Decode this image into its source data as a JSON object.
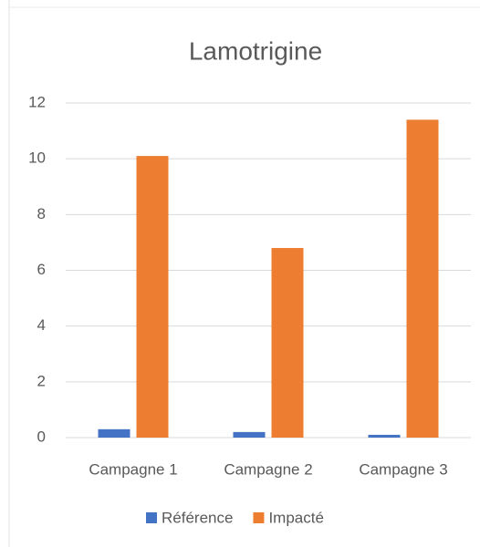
{
  "chart_data": {
    "type": "bar",
    "title": "Lamotrigine",
    "categories": [
      "Campagne 1",
      "Campagne 2",
      "Campagne 3"
    ],
    "series": [
      {
        "name": "Référence",
        "color": "#4472c4",
        "values": [
          0.3,
          0.2,
          0.1
        ]
      },
      {
        "name": "Impacté",
        "color": "#ed7d31",
        "values": [
          10.1,
          6.8,
          11.4
        ]
      }
    ],
    "ylim": [
      0,
      12
    ],
    "yticks": [
      0,
      2,
      4,
      6,
      8,
      10,
      12
    ],
    "grid": true,
    "legend": "bottom"
  }
}
